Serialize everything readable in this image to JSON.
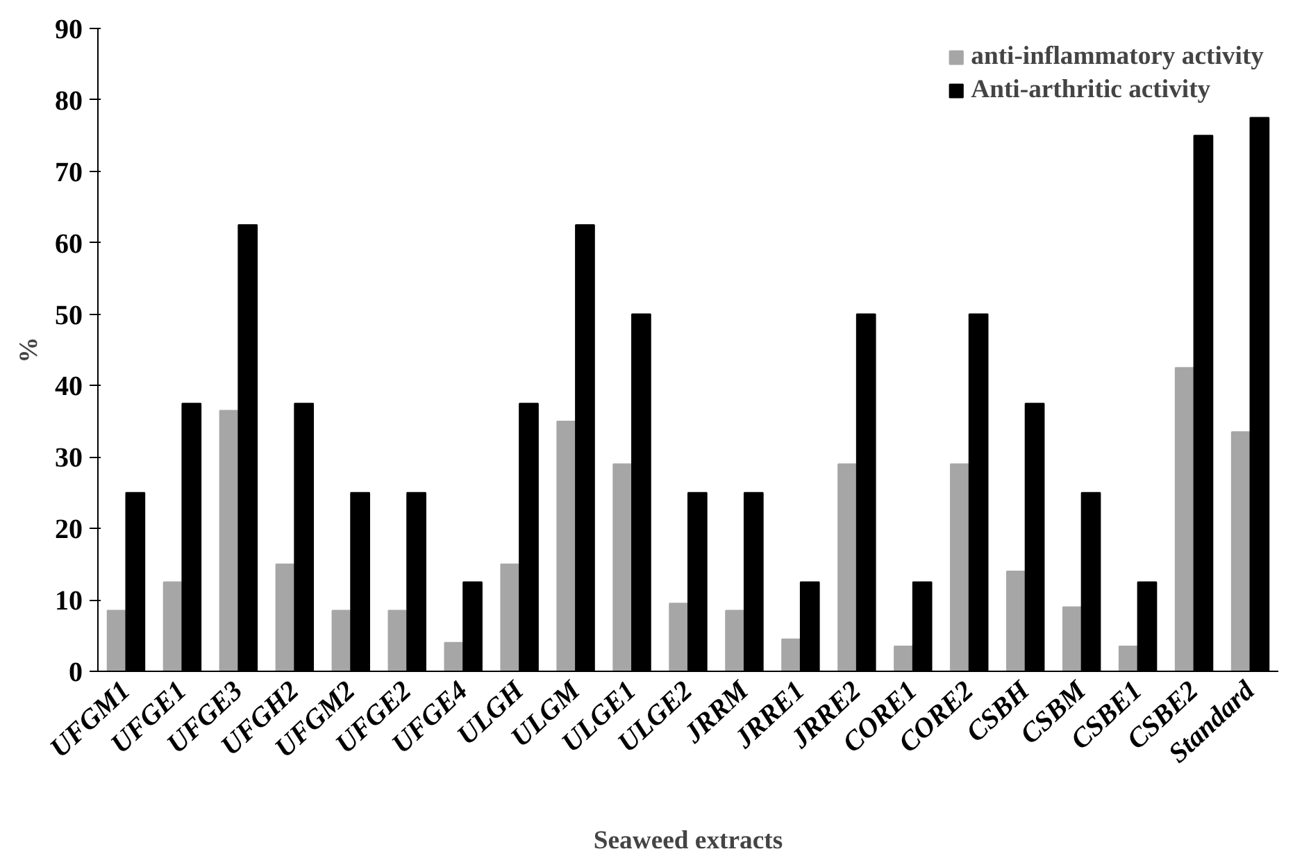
{
  "chart_data": {
    "type": "bar",
    "xlabel": "Seaweed extracts",
    "ylabel": "%",
    "categories": [
      "UFGM1",
      "UFGE1",
      "UFGE3",
      "UFGH2",
      "UFGM2",
      "UFGE2",
      "UFGE4",
      "ULGH",
      "ULGM",
      "ULGE1",
      "ULGE2",
      "JRRM",
      "JRRE1",
      "JRRE2",
      "CORE1",
      "CORE2",
      "CSBH",
      "CSBM",
      "CSBE1",
      "CSBE2",
      "Standard"
    ],
    "series": [
      {
        "name": "anti-inflammatory activity",
        "color": "#a6a6a6",
        "values": [
          8.5,
          12.5,
          36.5,
          15,
          8.5,
          8.5,
          4,
          15,
          35,
          29,
          9.5,
          8.5,
          4.5,
          29,
          3.5,
          29,
          14,
          9,
          3.5,
          42.5,
          33.5
        ]
      },
      {
        "name": "Anti-arthritic activity",
        "color": "#000000",
        "values": [
          25,
          37.5,
          62.5,
          37.5,
          25,
          25,
          12.5,
          37.5,
          62.5,
          50,
          25,
          25,
          12.5,
          50,
          12.5,
          50,
          37.5,
          25,
          12.5,
          75,
          77.5
        ]
      }
    ],
    "ylim": [
      0,
      90
    ],
    "yticks": [
      0,
      10,
      20,
      30,
      40,
      50,
      60,
      70,
      80,
      90
    ],
    "grid": false,
    "legend": "top right"
  }
}
